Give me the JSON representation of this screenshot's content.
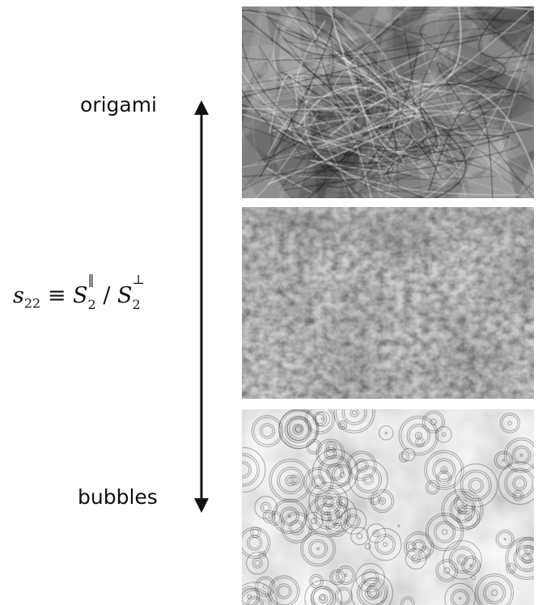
{
  "labels": {
    "top": "origami",
    "bottom": "bubbles"
  },
  "formula": {
    "symbol": "s",
    "subscript": "22",
    "equiv": "≡",
    "S": "S",
    "s2_sub": "2",
    "parallel_sup": "‖",
    "slash": "/",
    "perp_sup": "⊥"
  },
  "panels": [
    {
      "name": "origami-texture-panel"
    },
    {
      "name": "intermediate-texture-panel"
    },
    {
      "name": "bubbles-texture-panel"
    }
  ]
}
